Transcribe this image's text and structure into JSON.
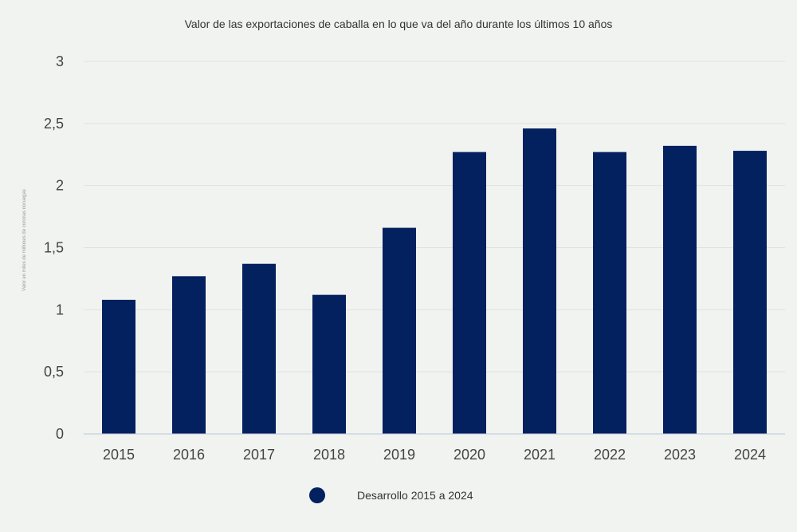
{
  "chart_data": {
    "type": "bar",
    "title": "Valor de las exportaciones de caballa en lo que va del año durante los últimos 10 años",
    "ylabel": "Valor en miles de millones de coronas noruegas",
    "xlabel": "",
    "categories": [
      "2015",
      "2016",
      "2017",
      "2018",
      "2019",
      "2020",
      "2021",
      "2022",
      "2023",
      "2024"
    ],
    "series": [
      {
        "name": "Desarrollo 2015 a 2024",
        "values": [
          1.08,
          1.27,
          1.37,
          1.12,
          1.66,
          2.27,
          2.46,
          2.27,
          2.32,
          2.28
        ],
        "color": "#03205f"
      }
    ],
    "ylim": [
      0,
      3
    ],
    "yticks": [
      0,
      0.5,
      1,
      1.5,
      2,
      2.5,
      3
    ],
    "ytick_labels": [
      "0",
      "0,5",
      "1",
      "1,5",
      "2",
      "2,5",
      "3"
    ],
    "grid": true,
    "legend_position": "bottom-center"
  }
}
